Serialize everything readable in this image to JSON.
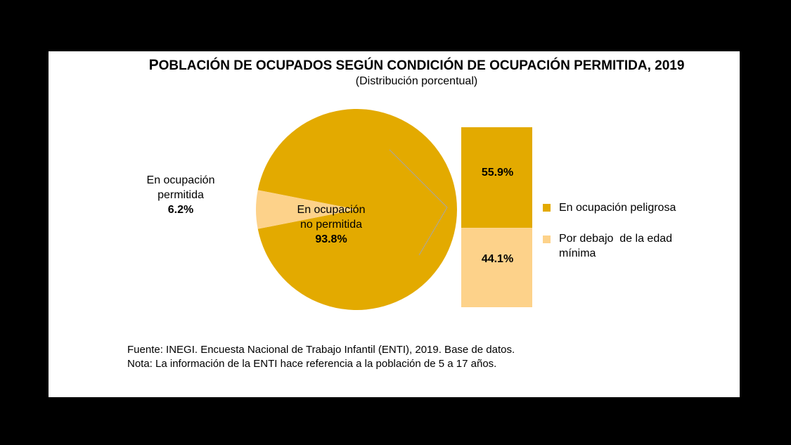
{
  "chart_data": {
    "type": "pie",
    "title": "Población de ocupados según condición de ocupación permitida, 2019",
    "subtitle": "(Distribución porcentual)",
    "slices": [
      {
        "label_line1": "En ocupación",
        "label_line2": "permitida",
        "value": 6.2,
        "value_label": "6.2%",
        "color": "#fdd28a"
      },
      {
        "label_line1": "En ocupación",
        "label_line2": "no permitida",
        "value": 93.8,
        "value_label": "93.8%",
        "color": "#e3aa00"
      }
    ],
    "breakdown": {
      "type": "stacked-bar",
      "of_slice": "En ocupación no permitida",
      "segments": [
        {
          "name": "En ocupación peligrosa",
          "value": 55.9,
          "value_label": "55.9%",
          "color": "#e3aa00"
        },
        {
          "name_line1": "Por debajo  de la edad",
          "name_line2": "mínima",
          "value": 44.1,
          "value_label": "44.1%",
          "color": "#fdd28a"
        }
      ]
    },
    "legend_position": "right"
  },
  "footer": {
    "source": "Fuente: INEGI. Encuesta Nacional de Trabajo Infantil (ENTI), 2019. Base de datos.",
    "note": "Nota: La información de la ENTI hace referencia a la población de 5 a 17 años."
  }
}
